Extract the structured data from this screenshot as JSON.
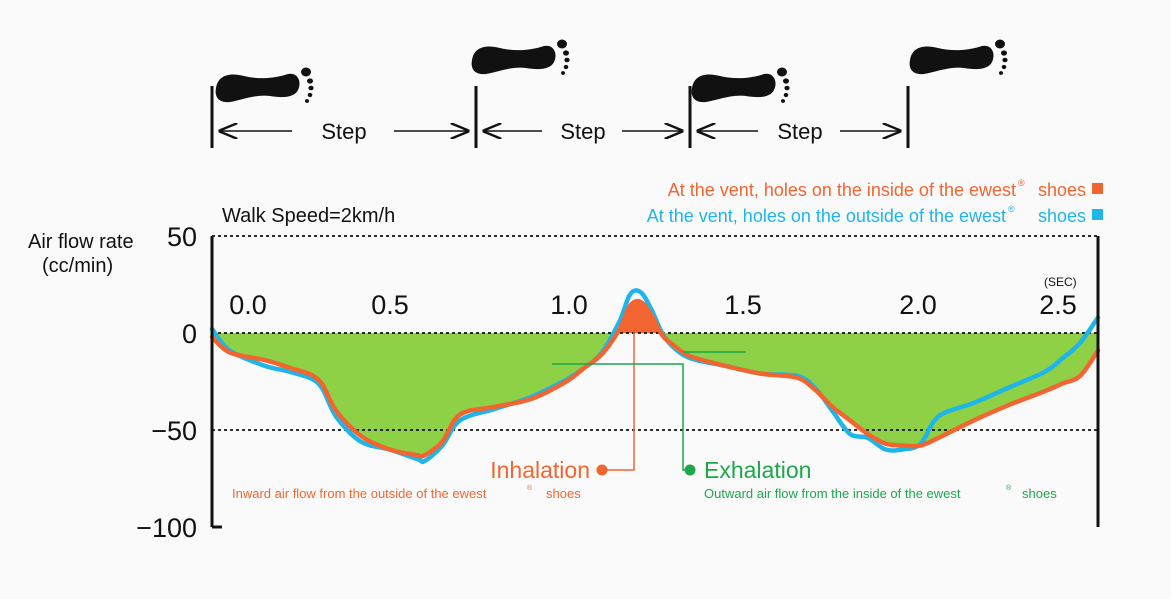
{
  "steps": [
    "Step",
    "Step",
    "Step"
  ],
  "legend": [
    {
      "label": "At the vent, holes on the inside of the ewest",
      "suffix": "shoes",
      "color": "#f26530"
    },
    {
      "label": "At the vent, holes on the outside of the ewest",
      "suffix": "shoes",
      "color": "#1eb5ea"
    }
  ],
  "walk_speed": "Walk Speed=2km/h",
  "ylabel_line1": "Air flow rate",
  "ylabel_line2": "(cc/min)",
  "xunit": "(SEC)",
  "annotations": {
    "inhalation": {
      "title": "Inhalation",
      "desc": "Inward air flow from the outside of the ewest",
      "desc_suffix": "shoes",
      "color": "#f26530"
    },
    "exhalation": {
      "title": "Exhalation",
      "desc": "Outward air flow from the inside of the ewest",
      "desc_suffix": "shoes",
      "color": "#1aa84a"
    }
  },
  "colors": {
    "fill_negative": "#8fd146",
    "fill_positive": "#f26530",
    "orange": "#f26530",
    "blue": "#1eb5ea",
    "green": "#1aa84a"
  },
  "icons": [
    "footprint-icon",
    "footprint-icon",
    "footprint-icon",
    "footprint-icon"
  ],
  "chart_data": {
    "type": "line",
    "xlabel": "",
    "ylabel": "Air flow rate (cc/min)",
    "xlim": [
      0,
      2.5
    ],
    "ylim": [
      -100,
      50
    ],
    "yticks": [
      "50",
      "0",
      "−50",
      "−100"
    ],
    "ytick_values": [
      50,
      0,
      -50,
      -100
    ],
    "xticks": [
      "0.0",
      "0.5",
      "1.0",
      "1.5",
      "2.0",
      "2.5"
    ],
    "xtick_values": [
      0,
      0.5,
      1.0,
      1.5,
      2.0,
      2.5
    ],
    "grid": "dashed at 50, 0, -50",
    "series": [
      {
        "color": "#1eb5ea",
        "x": [
          0,
          0.05,
          0.15,
          0.22,
          0.3,
          0.35,
          0.42,
          0.5,
          0.58,
          0.6,
          0.65,
          0.7,
          0.8,
          0.9,
          1.0,
          1.05,
          1.1,
          1.15,
          1.18,
          1.21,
          1.24,
          1.27,
          1.3,
          1.35,
          1.45,
          1.55,
          1.65,
          1.7,
          1.75,
          1.8,
          1.85,
          1.9,
          1.95,
          2.0,
          2.05,
          2.15,
          2.25,
          2.35,
          2.4,
          2.45,
          2.5
        ],
        "y": [
          2,
          -9,
          -17,
          -20,
          -26,
          -43,
          -56,
          -60,
          -65,
          -66,
          -58,
          -45,
          -39,
          -33,
          -24,
          -18,
          -10,
          6,
          20,
          21,
          12,
          0,
          -7,
          -13,
          -17,
          -21,
          -22,
          -28,
          -40,
          -52,
          -54,
          -60,
          -60,
          -57,
          -43,
          -36,
          -28,
          -20,
          -13,
          -5,
          8
        ]
      },
      {
        "color": "#f26530",
        "x": [
          0,
          0.05,
          0.15,
          0.22,
          0.3,
          0.35,
          0.42,
          0.5,
          0.58,
          0.6,
          0.65,
          0.7,
          0.8,
          0.9,
          1.0,
          1.05,
          1.1,
          1.15,
          1.18,
          1.21,
          1.24,
          1.27,
          1.3,
          1.35,
          1.45,
          1.55,
          1.65,
          1.7,
          1.75,
          1.8,
          1.85,
          1.9,
          1.95,
          2.0,
          2.05,
          2.15,
          2.25,
          2.35,
          2.4,
          2.45,
          2.5
        ],
        "y": [
          -2,
          -10,
          -14,
          -18,
          -24,
          -40,
          -53,
          -60,
          -63,
          -63,
          -56,
          -42,
          -38,
          -34,
          -25,
          -18,
          -11,
          2,
          14,
          16,
          9,
          -1,
          -6,
          -12,
          -17,
          -21,
          -23,
          -29,
          -38,
          -45,
          -52,
          -57,
          -58,
          -58,
          -54,
          -45,
          -37,
          -30,
          -26,
          -22,
          -9
        ]
      }
    ]
  }
}
